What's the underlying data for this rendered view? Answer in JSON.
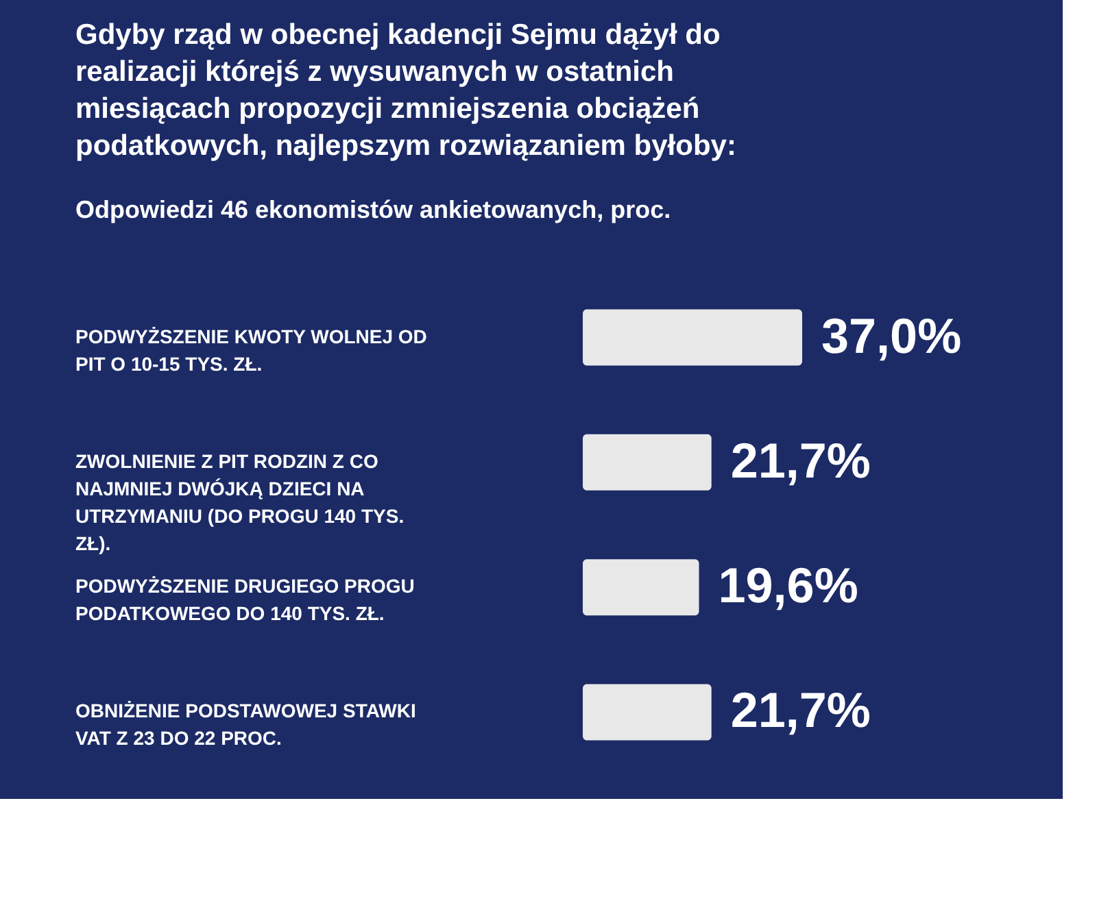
{
  "chart_data": {
    "type": "bar",
    "orientation": "horizontal",
    "title": "Gdyby rząd w obecnej kadencji Sejmu dążył do realizacji którejś z wysuwanych w ostatnich miesiącach propozycji zmniejszenia obciążeń podatkowych, najlepszym rozwiązaniem byłoby:",
    "subtitle": "Odpowiedzi 46 ekonomistów ankietowanych, proc.",
    "categories": [
      "PODWYŻSZENIE KWOTY WOLNEJ OD PIT O 10-15 TYS. ZŁ.",
      "ZWOLNIENIE Z PIT RODZIN Z CO NAJMNIEJ DWÓJKĄ DZIECI NA UTRZYMANIU (DO PROGU 140 TYS. ZŁ).",
      "PODWYŻSZENIE DRUGIEGO PROGU PODATKOWEGO DO 140 TYS. ZŁ.",
      "OBNIŻENIE PODSTAWOWEJ STAWKI VAT Z 23 DO 22 PROC."
    ],
    "values": [
      37.0,
      21.7,
      19.6,
      21.7
    ],
    "value_labels": [
      "37,0%",
      "21,7%",
      "19,6%",
      "21,7%"
    ],
    "color": "#e8e8e8"
  }
}
